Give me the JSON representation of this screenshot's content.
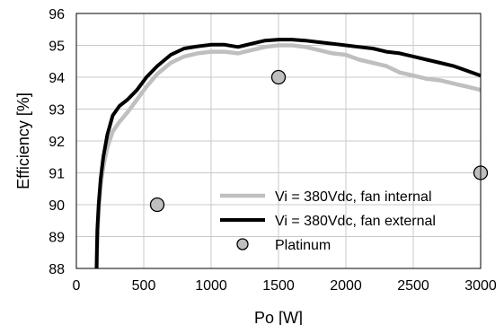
{
  "chart_data": {
    "type": "line",
    "title": "",
    "xlabel": "Po [W]",
    "ylabel": "Efficiency [%]",
    "xlim": [
      0,
      3000
    ],
    "ylim": [
      88,
      96
    ],
    "xticks": [
      0,
      500,
      1000,
      1500,
      2000,
      2500,
      3000
    ],
    "yticks": [
      88,
      89,
      90,
      91,
      92,
      93,
      94,
      95,
      96
    ],
    "grid": true,
    "legend_position": "bottom-right",
    "series": [
      {
        "name": "Vi = 380Vdc, fan internal",
        "kind": "line",
        "color": "#bfbfbf",
        "x": [
          150,
          155,
          165,
          180,
          200,
          230,
          270,
          320,
          380,
          450,
          520,
          600,
          700,
          800,
          900,
          1000,
          1100,
          1200,
          1300,
          1400,
          1500,
          1600,
          1700,
          1800,
          1900,
          2000,
          2100,
          2200,
          2300,
          2400,
          2500,
          2600,
          2700,
          2800,
          2900,
          3000
        ],
        "y": [
          88.0,
          88.8,
          89.8,
          90.6,
          91.2,
          91.8,
          92.3,
          92.6,
          92.9,
          93.3,
          93.7,
          94.1,
          94.45,
          94.65,
          94.75,
          94.8,
          94.8,
          94.75,
          94.85,
          94.95,
          95.0,
          95.0,
          94.95,
          94.85,
          94.75,
          94.7,
          94.55,
          94.45,
          94.35,
          94.15,
          94.05,
          93.95,
          93.9,
          93.8,
          93.7,
          93.6
        ]
      },
      {
        "name": "Vi = 380Vdc, fan external",
        "kind": "line",
        "color": "#000000",
        "x": [
          150,
          155,
          165,
          180,
          200,
          230,
          270,
          320,
          380,
          450,
          520,
          600,
          700,
          800,
          900,
          1000,
          1100,
          1200,
          1250,
          1300,
          1400,
          1500,
          1600,
          1700,
          1800,
          1900,
          2000,
          2100,
          2200,
          2300,
          2400,
          2500,
          2600,
          2700,
          2800,
          2900,
          3000
        ],
        "y": [
          88.0,
          89.2,
          90.0,
          90.8,
          91.5,
          92.2,
          92.8,
          93.1,
          93.3,
          93.6,
          94.0,
          94.35,
          94.7,
          94.9,
          94.97,
          95.02,
          95.02,
          94.95,
          95.0,
          95.05,
          95.15,
          95.18,
          95.18,
          95.15,
          95.1,
          95.05,
          95.0,
          94.95,
          94.9,
          94.8,
          94.75,
          94.65,
          94.55,
          94.45,
          94.35,
          94.2,
          94.05
        ]
      },
      {
        "name": "Platinum",
        "kind": "scatter",
        "color": "#bfbfbf",
        "x": [
          600,
          1500,
          3000
        ],
        "y": [
          90,
          94,
          91
        ]
      }
    ]
  }
}
